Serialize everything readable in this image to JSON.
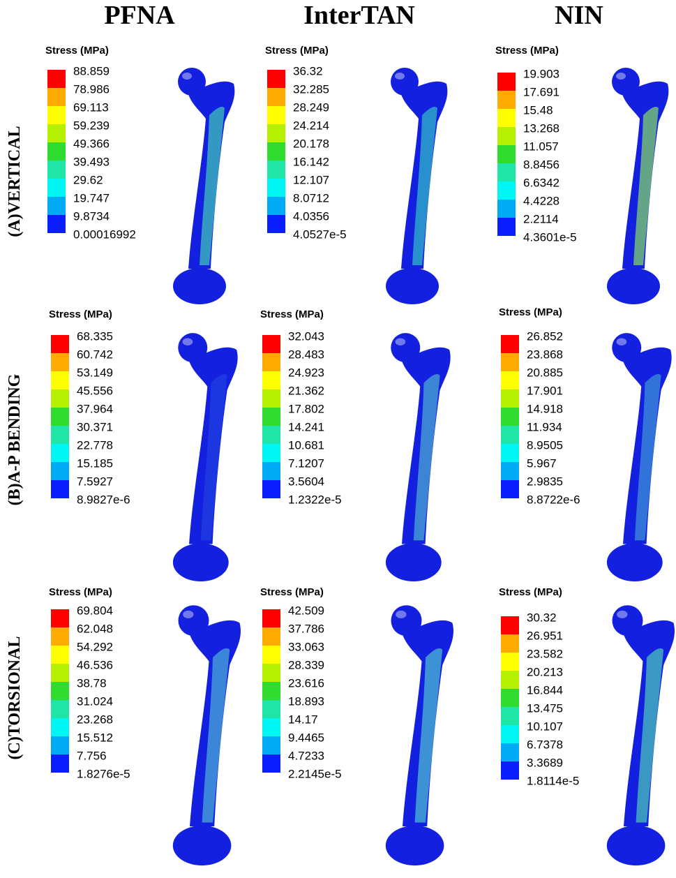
{
  "columns": [
    "PFNA",
    "InterTAN",
    "NIN"
  ],
  "rows": [
    "(A)VERTICAL",
    "(B)A-P BENDING",
    "(C)TORSIONAL"
  ],
  "panels": [
    [
      {
        "legend_title": "Stress (MPa)",
        "levels": [
          "88.859",
          "78.986",
          "69.113",
          "59.239",
          "49.366",
          "39.493",
          "29.62",
          "19.747",
          "9.8734",
          "0.00016992"
        ]
      },
      {
        "legend_title": "Stress (MPa)",
        "levels": [
          "36.32",
          "32.285",
          "28.249",
          "24.214",
          "20.178",
          "16.142",
          "12.107",
          "8.0712",
          "4.0356",
          "4.0527e-5"
        ]
      },
      {
        "legend_title": "Stress (MPa)",
        "levels": [
          "19.903",
          "17.691",
          "15.48",
          "13.268",
          "11.057",
          "8.8456",
          "6.6342",
          "4.4228",
          "2.2114",
          "4.3601e-5"
        ]
      }
    ],
    [
      {
        "legend_title": "Stress (MPa)",
        "levels": [
          "68.335",
          "60.742",
          "53.149",
          "45.556",
          "37.964",
          "30.371",
          "22.778",
          "15.185",
          "7.5927",
          "8.9827e-6"
        ]
      },
      {
        "legend_title": "Stress (MPa)",
        "levels": [
          "32.043",
          "28.483",
          "24.923",
          "21.362",
          "17.802",
          "14.241",
          "10.681",
          "7.1207",
          "3.5604",
          "1.2322e-5"
        ]
      },
      {
        "legend_title": "Stress (MPa)",
        "levels": [
          "26.852",
          "23.868",
          "20.885",
          "17.901",
          "14.918",
          "11.934",
          "8.9505",
          "5.967",
          "2.9835",
          "8.8722e-6"
        ]
      }
    ],
    [
      {
        "legend_title": "Stress (MPa)",
        "levels": [
          "69.804",
          "62.048",
          "54.292",
          "46.536",
          "38.78",
          "31.024",
          "23.268",
          "15.512",
          "7.756",
          "1.8276e-5"
        ]
      },
      {
        "legend_title": "Stress (MPa)",
        "levels": [
          "42.509",
          "37.786",
          "33.063",
          "28.339",
          "23.616",
          "18.893",
          "14.17",
          "9.4465",
          "4.7233",
          "2.2145e-5"
        ]
      },
      {
        "legend_title": "Stress (MPa)",
        "levels": [
          "30.32",
          "26.951",
          "23.582",
          "20.213",
          "16.844",
          "13.475",
          "10.107",
          "6.7378",
          "3.3689",
          "1.8114e-5"
        ]
      }
    ]
  ]
}
